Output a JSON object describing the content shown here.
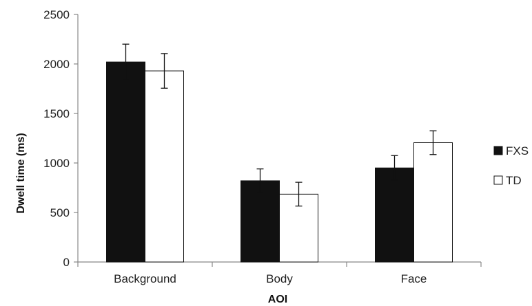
{
  "chart_data": {
    "type": "bar",
    "title": "",
    "xlabel": "AOI",
    "ylabel": "Dwell time (ms)",
    "categories": [
      "Background",
      "Body",
      "Face"
    ],
    "ylim": [
      0,
      2500
    ],
    "yticks": [
      0,
      500,
      1000,
      1500,
      2000,
      2500
    ],
    "grid": false,
    "legend_position": "right",
    "series": [
      {
        "name": "FXS",
        "values": [
          2020,
          820,
          950
        ],
        "errors": [
          180,
          120,
          125
        ],
        "fill": "#111111"
      },
      {
        "name": "TD",
        "values": [
          1930,
          685,
          1205
        ],
        "errors": [
          175,
          120,
          120
        ],
        "fill": "#ffffff"
      }
    ]
  }
}
